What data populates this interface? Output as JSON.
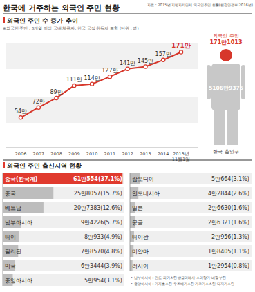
{
  "header": {
    "title": "한국에 거주하는 외국인 주민 현황",
    "source": "자료 : 2015년 지방자치단체 외국인주민 현황(행정안전부·2016년)"
  },
  "infobox": {
    "label": "외국인 주민",
    "foreign": "171만1013",
    "total": "5106만9375",
    "total_label": "한국 총인구"
  },
  "chart_data": [
    {
      "type": "line",
      "title": "외국인 주민 수 증가 추이",
      "subtitle": "※외국인 주민 : 3개월 이상 국내 체류자, 한국 국적 취득자 포함 (단위 : 명)",
      "categories": [
        "2006",
        "2007",
        "2008",
        "2009",
        "2010",
        "2011",
        "2012",
        "2013",
        "2014",
        "2015년 11월1일"
      ],
      "values": [
        54,
        72,
        89,
        111,
        114,
        127,
        141,
        145,
        157,
        171
      ],
      "value_labels": [
        "54만",
        "72만",
        "89만",
        "111만",
        "114만",
        "127만",
        "141만",
        "145만",
        "157만",
        "171만"
      ],
      "color": "#d7372b",
      "marker": "circle",
      "ylim": [
        0,
        200
      ],
      "tick_labels": "x",
      "data_labels": true,
      "grid": false
    },
    {
      "type": "bar",
      "orientation": "horizontal",
      "title": "외국인 주민 출신지역 현황",
      "categories": [
        "중국(한국계)",
        "중국",
        "베트남",
        "남부아시아",
        "타이",
        "필리핀",
        "미국",
        "중앙아시아",
        "캄보디아",
        "인도네시아",
        "일본",
        "몽골",
        "타이완",
        "미얀마",
        "러시아"
      ],
      "values": [
        610554,
        258057,
        207383,
        94226,
        80933,
        78570,
        63444,
        50954,
        50664,
        42844,
        26630,
        26321,
        20956,
        18405,
        12954
      ],
      "value_labels": [
        "61만554(37.1%)",
        "25만8057(15.7%)",
        "20만7383(12.6%)",
        "9만4226(5.7%)",
        "8만933(4.9%)",
        "7만8570(4.8%)",
        "6만3444(3.9%)",
        "5만954(3.1%)",
        "5만664(3.1%)",
        "4만2844(2.6%)",
        "2만6630(1.6%)",
        "2만6321(1.6%)",
        "2만956(1.3%)",
        "1만8405(1.1%)",
        "1만2954(0.8%)"
      ],
      "colors": [
        "#e03a2e",
        "#bdbdbd",
        "#bdbdbd",
        "#bdbdbd",
        "#bdbdbd",
        "#bdbdbd",
        "#bdbdbd",
        "#bdbdbd",
        "#bdbdbd",
        "#bdbdbd",
        "#bdbdbd",
        "#bdbdbd",
        "#bdbdbd",
        "#bdbdbd",
        "#bdbdbd"
      ],
      "xlim": [
        0,
        620000
      ],
      "tick_labels": false,
      "data_labels": true,
      "notes": [
        "• 남부아시아 : 인도·파키스탄·방글라데시·스리랑카·네팔·부탄",
        "• 중앙아시아 : 카자흐스탄·우즈베키스탄·키르기스스탄·타지키스탄"
      ]
    }
  ]
}
